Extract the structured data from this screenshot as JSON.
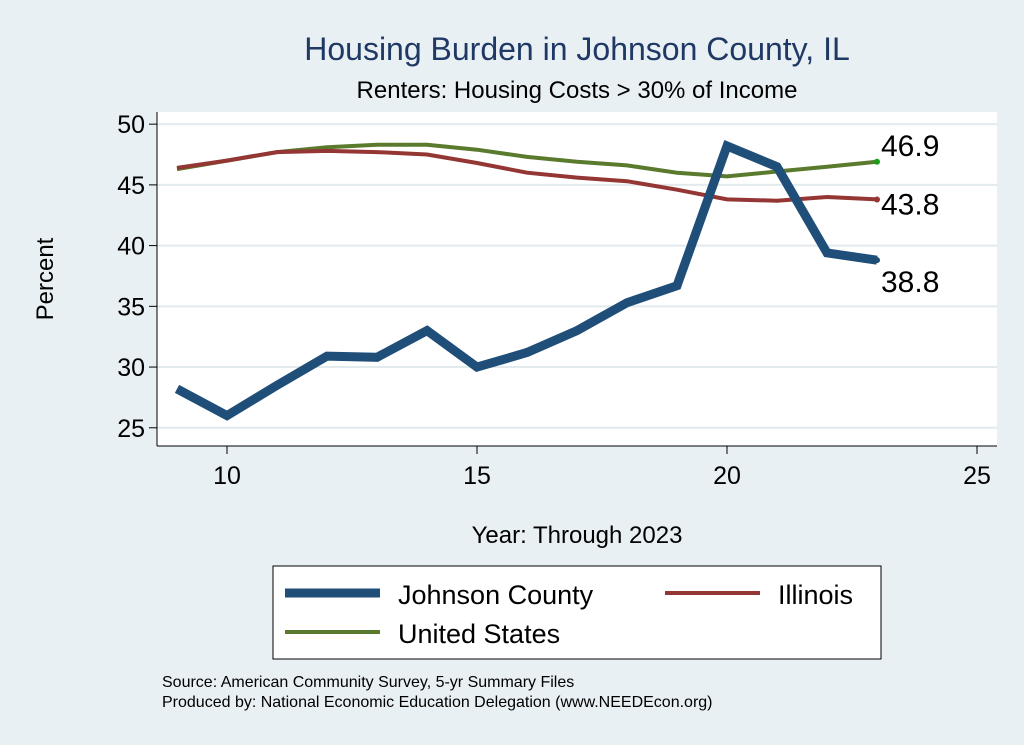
{
  "chart_data": {
    "type": "line",
    "title": "Housing Burden in Johnson County, IL",
    "subtitle": "Renters: Housing Costs > 30% of Income",
    "xlabel": "Year: Through 2023",
    "ylabel": "Percent",
    "xlim": [
      8.6,
      25.4
    ],
    "ylim": [
      23.5,
      51.0
    ],
    "xticks": [
      10,
      15,
      20,
      25
    ],
    "yticks": [
      25,
      30,
      35,
      40,
      45,
      50
    ],
    "grid": true,
    "x": [
      9,
      10,
      11,
      12,
      13,
      14,
      15,
      16,
      17,
      18,
      19,
      20,
      21,
      22,
      23
    ],
    "series": [
      {
        "name": "Johnson County",
        "color": "#1f4e79",
        "values": [
          28.2,
          26.0,
          28.5,
          30.9,
          30.8,
          33.0,
          30.0,
          31.2,
          33.0,
          35.3,
          36.7,
          48.2,
          46.5,
          39.4,
          38.8
        ],
        "end_label": "38.8"
      },
      {
        "name": "Illinois",
        "color": "#943634",
        "values": [
          46.4,
          47.0,
          47.7,
          47.8,
          47.7,
          47.5,
          46.8,
          46.0,
          45.6,
          45.3,
          44.6,
          43.8,
          43.7,
          44.0,
          43.8
        ],
        "end_label": "43.8"
      },
      {
        "name": "United States",
        "color": "#5a7a2e",
        "values": [
          46.3,
          47.0,
          47.7,
          48.1,
          48.3,
          48.3,
          47.9,
          47.3,
          46.9,
          46.6,
          46.0,
          45.7,
          46.1,
          46.5,
          46.9
        ],
        "end_label": "46.9"
      }
    ],
    "legend": [
      "Johnson County",
      "Illinois",
      "United States"
    ],
    "legend_position": "bottom",
    "notes": [
      "Source: American Community Survey, 5-yr Summary Files",
      "Produced by: National Economic Education Delegation (www.NEEDEcon.org)"
    ]
  }
}
